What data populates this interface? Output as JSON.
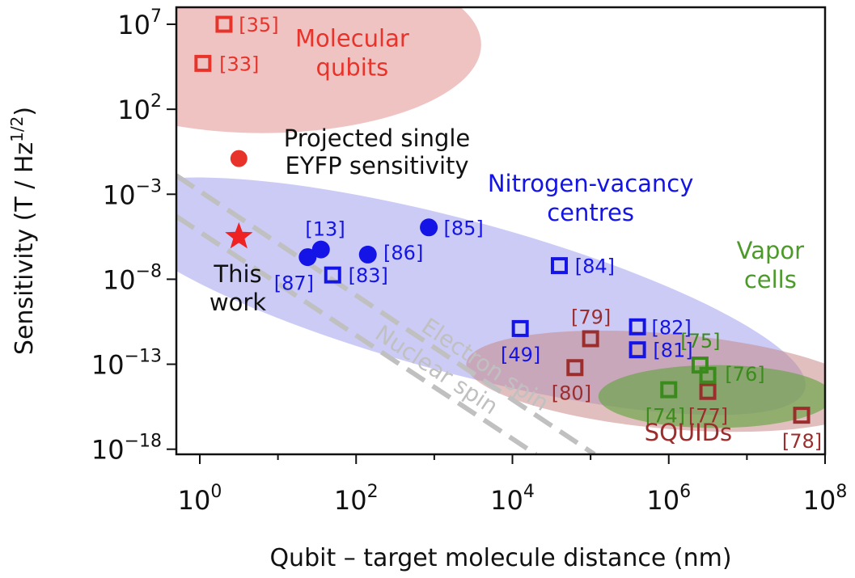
{
  "chart_data": {
    "type": "scatter",
    "xlabel": "Qubit – target molecule distance (nm)",
    "ylabel": "Sensitivity (T / Hz",
    "ylabel_sup": "1/2",
    "ylabel_close": ")",
    "x_scale": "log",
    "y_scale": "log",
    "xlim_exp": [
      -0.3,
      8.0
    ],
    "ylim_exp": [
      -18.3,
      8.0
    ],
    "x_ticks": [
      {
        "exp": 0,
        "base": "10",
        "sup": "0"
      },
      {
        "exp": 2,
        "base": "10",
        "sup": "2"
      },
      {
        "exp": 4,
        "base": "10",
        "sup": "4"
      },
      {
        "exp": 6,
        "base": "10",
        "sup": "6"
      },
      {
        "exp": 8,
        "base": "10",
        "sup": "8"
      }
    ],
    "y_ticks": [
      {
        "exp": 7,
        "base": "10",
        "sup": "7"
      },
      {
        "exp": 2,
        "base": "10",
        "sup": "2"
      },
      {
        "exp": -3,
        "base": "10",
        "sup": "−3"
      },
      {
        "exp": -8,
        "base": "10",
        "sup": "−8"
      },
      {
        "exp": -13,
        "base": "10",
        "sup": "−13"
      },
      {
        "exp": -18,
        "base": "10",
        "sup": "−18"
      }
    ],
    "colors": {
      "molecular": "#e8332b",
      "nv": "#1414e6",
      "squid": "#9b2d2d",
      "vapor": "#3a8a1c",
      "vapor_label": "#4c9a2a",
      "region_molecular": "#e8a3a3",
      "region_nv": "#a9a9f0",
      "region_squid": "#c98a8a",
      "region_vapor": "#5ea33a",
      "spin_line": "#c0c0c0",
      "star": "#ee2222",
      "black": "#111111"
    },
    "regions": [
      {
        "name": "Molecular qubits",
        "cx_exp": 0.8,
        "cy_exp": 5.8,
        "rx_dec": 2.8,
        "ry_dec": 5.2,
        "angle": 0,
        "color": "region_molecular",
        "opacity": 0.65
      },
      {
        "name": "Nitrogen-vacancy centres",
        "cx_exp": 3.3,
        "cy_exp": -9.0,
        "rx_dec": 4.6,
        "ry_dec": 4.5,
        "angle": 15,
        "color": "region_nv",
        "opacity": 0.6
      },
      {
        "name": "SQUIDs",
        "cx_exp": 6.0,
        "cy_exp": -14.0,
        "rx_dec": 2.6,
        "ry_dec": 2.8,
        "angle": 5,
        "color": "region_squid",
        "opacity": 0.55
      },
      {
        "name": "Vapor cells",
        "cx_exp": 6.6,
        "cy_exp": -14.9,
        "rx_dec": 1.5,
        "ry_dec": 1.85,
        "angle": 0,
        "color": "region_vapor",
        "opacity": 0.6
      }
    ],
    "lines": [
      {
        "label": "Electron spin",
        "x1_exp": -0.3,
        "y1_exp": -1.9,
        "x2_exp": 5.05,
        "y2_exp": -18.3
      },
      {
        "label": "Nuclear spin",
        "x1_exp": -0.3,
        "y1_exp": -4.3,
        "x2_exp": 4.3,
        "y2_exp": -18.3
      }
    ],
    "series": [
      {
        "name": "Molecular qubits",
        "marker": "square",
        "color": "molecular",
        "points": [
          {
            "x_exp": 0.31,
            "y_exp": 7.0,
            "label": "[35]",
            "lx": 0.5,
            "ly": 7.0
          },
          {
            "x_exp": 0.04,
            "y_exp": 4.7,
            "label": "[33]",
            "lx": 0.25,
            "ly": 4.7
          }
        ]
      },
      {
        "name": "Nitrogen-vacancy centres (circles)",
        "marker": "circle",
        "color": "nv",
        "points": [
          {
            "x_exp": 1.55,
            "y_exp": -6.25,
            "label": "[13]",
            "lx": 1.35,
            "ly": -5.0
          },
          {
            "x_exp": 1.38,
            "y_exp": -6.7,
            "label": "[87]",
            "lx": 0.95,
            "ly": -8.2
          },
          {
            "x_exp": 2.15,
            "y_exp": -6.55,
            "label": "[86]",
            "lx": 2.35,
            "ly": -6.4
          },
          {
            "x_exp": 2.93,
            "y_exp": -4.95,
            "label": "[85]",
            "lx": 3.12,
            "ly": -4.95
          }
        ]
      },
      {
        "name": "Nitrogen-vacancy centres (squares)",
        "marker": "square",
        "color": "nv",
        "points": [
          {
            "x_exp": 1.7,
            "y_exp": -7.75,
            "label": "[83]",
            "lx": 1.9,
            "ly": -7.75
          },
          {
            "x_exp": 4.6,
            "y_exp": -7.2,
            "label": "[84]",
            "lx": 4.8,
            "ly": -7.2
          },
          {
            "x_exp": 4.1,
            "y_exp": -10.9,
            "label": "[49]",
            "lx": 3.85,
            "ly": -12.4
          },
          {
            "x_exp": 5.6,
            "y_exp": -12.15,
            "label": "[81]",
            "lx": 5.8,
            "ly": -12.15
          },
          {
            "x_exp": 5.6,
            "y_exp": -10.8,
            "label": "[82]",
            "lx": 5.78,
            "ly": -10.8
          }
        ]
      },
      {
        "name": "SQUIDs",
        "marker": "square",
        "color": "squid",
        "points": [
          {
            "x_exp": 4.8,
            "y_exp": -13.2,
            "label": "[80]",
            "lx": 4.5,
            "ly": -14.65
          },
          {
            "x_exp": 5.0,
            "y_exp": -11.5,
            "label": "[79]",
            "lx": 4.75,
            "ly": -10.2
          },
          {
            "x_exp": 6.5,
            "y_exp": -14.6,
            "label": "[77]",
            "lx": 6.25,
            "ly": -16.0
          },
          {
            "x_exp": 7.7,
            "y_exp": -16.0,
            "label": "[78]",
            "lx": 7.45,
            "ly": -17.5
          }
        ]
      },
      {
        "name": "Vapor cells",
        "marker": "square",
        "color": "vapor",
        "points": [
          {
            "x_exp": 6.0,
            "y_exp": -14.5,
            "label": "[74]",
            "lx": 5.7,
            "ly": -16.0
          },
          {
            "x_exp": 6.4,
            "y_exp": -13.05,
            "label": "[75]",
            "lx": 6.15,
            "ly": -11.6
          },
          {
            "x_exp": 6.5,
            "y_exp": -13.65,
            "label": "[76]",
            "lx": 6.72,
            "ly": -13.55
          }
        ]
      }
    ],
    "projected_point": {
      "x_exp": 0.5,
      "y_exp": -0.9,
      "color": "molecular",
      "lines": [
        "Projected single",
        "EYFP sensitivity"
      ]
    },
    "this_work": {
      "x_exp": 0.5,
      "y_exp": -5.5,
      "color": "star",
      "lines": [
        "This",
        "work"
      ]
    },
    "annotations": [
      {
        "lines": [
          "Molecular",
          "qubits"
        ],
        "x_exp": 1.95,
        "y_exp": 5.7,
        "color": "molecular",
        "anchor": "middle"
      },
      {
        "lines": [
          "Nitrogen-vacancy",
          "centres"
        ],
        "x_exp": 5.0,
        "y_exp": -2.85,
        "color": "nv",
        "anchor": "middle"
      },
      {
        "lines": [
          "Vapor",
          "cells"
        ],
        "x_exp": 7.3,
        "y_exp": -6.8,
        "color": "vapor_label",
        "anchor": "middle"
      },
      {
        "lines": [
          "SQUIDs"
        ],
        "x_exp": 6.25,
        "y_exp": -17.5,
        "color": "squid",
        "anchor": "middle"
      }
    ]
  }
}
